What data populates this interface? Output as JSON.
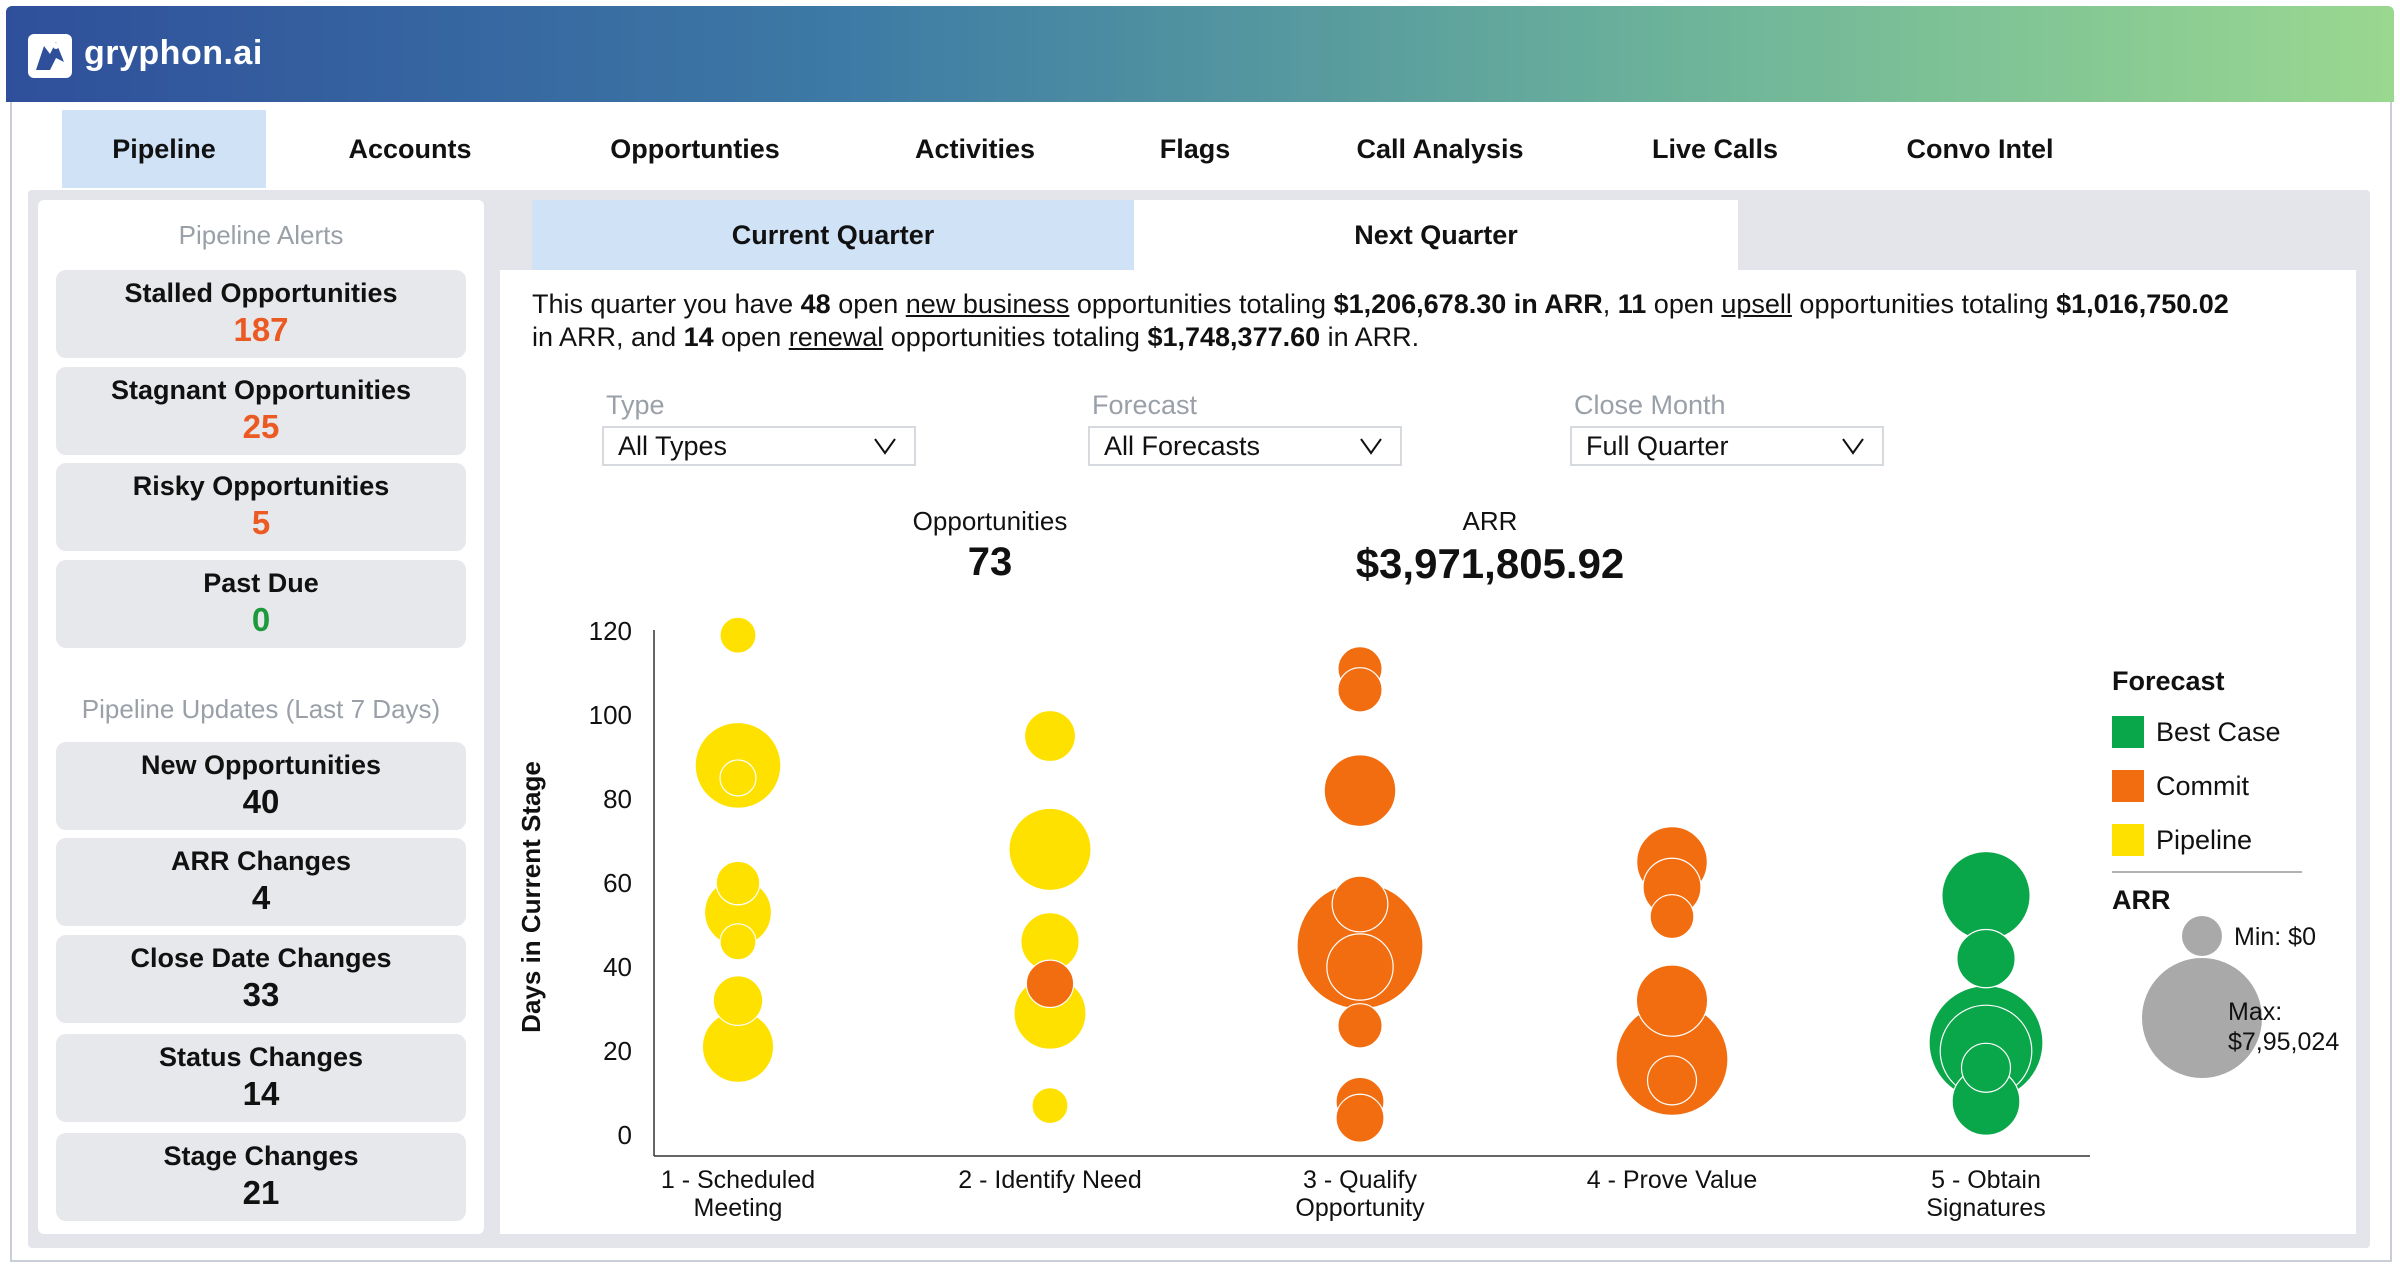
{
  "brand": {
    "name": "gryphon.ai"
  },
  "nav_tabs": [
    {
      "label": "Pipeline",
      "active": true
    },
    {
      "label": "Accounts"
    },
    {
      "label": "Opportunties"
    },
    {
      "label": "Activities"
    },
    {
      "label": "Flags"
    },
    {
      "label": "Call Analysis"
    },
    {
      "label": "Live Calls"
    },
    {
      "label": "Convo Intel"
    }
  ],
  "sidebar": {
    "alerts_title": "Pipeline Alerts",
    "alerts": [
      {
        "label": "Stalled Opportunities",
        "value": "187",
        "color": "#ec5a24"
      },
      {
        "label": "Stagnant Opportunities",
        "value": "25",
        "color": "#ec5a24"
      },
      {
        "label": "Risky Opportunities",
        "value": "5",
        "color": "#ec5a24"
      },
      {
        "label": "Past Due",
        "value": "0",
        "color": "#1e9a3d"
      }
    ],
    "updates_title": "Pipeline Updates (Last 7 Days)",
    "updates": [
      {
        "label": "New Opportunities",
        "value": "40"
      },
      {
        "label": "ARR Changes",
        "value": "4"
      },
      {
        "label": "Close Date Changes",
        "value": "33"
      },
      {
        "label": "Status Changes",
        "value": "14"
      },
      {
        "label": "Stage Changes",
        "value": "21"
      }
    ]
  },
  "quarter_tabs": [
    {
      "label": "Current Quarter",
      "active": true
    },
    {
      "label": "Next Quarter"
    }
  ],
  "summary": {
    "t1": "This quarter you have ",
    "nb_count": "48",
    "t2": " open ",
    "nb_link": "new business",
    "t3": " opportunities totaling ",
    "nb_arr": "$1,206,678.30 in ARR",
    "t4": ", ",
    "up_count": "11",
    "t5": " open ",
    "up_link": "upsell",
    "t6": " opportunities totaling ",
    "up_arr": "$1,016,750.02",
    "t7": " in ARR, and ",
    "rn_count": "14",
    "t8": " open ",
    "rn_link": "renewal",
    "t9": " opportunities totaling ",
    "rn_arr": "$1,748,377.60",
    "t10": " in ARR."
  },
  "filters": {
    "type": {
      "label": "Type",
      "value": "All Types"
    },
    "forecast": {
      "label": "Forecast",
      "value": "All Forecasts"
    },
    "close_month": {
      "label": "Close Month",
      "value": "Full Quarter"
    }
  },
  "kpis": {
    "opportunities": {
      "label": "Opportunities",
      "value": "73"
    },
    "arr": {
      "label": "ARR",
      "value": "$3,971,805.92"
    }
  },
  "chart_data": {
    "type": "scatter",
    "subtype": "bubble",
    "title": "",
    "xlabel": "",
    "ylabel": "Days in Current Stage",
    "ylim": [
      -5,
      125
    ],
    "yticks": [
      0,
      20,
      40,
      60,
      80,
      100,
      120
    ],
    "categories": [
      "1 - Scheduled Meeting",
      "2 - Identify Need",
      "3 - Qualify Opportunity",
      "4 - Prove Value",
      "5 - Obtain Signatures"
    ],
    "legend": {
      "title": "Forecast",
      "position": "right",
      "entries": [
        {
          "name": "Best Case",
          "color": "#0aa64a"
        },
        {
          "name": "Commit",
          "color": "#f26d0f"
        },
        {
          "name": "Pipeline",
          "color": "#ffe100"
        }
      ]
    },
    "size_legend": {
      "title": "ARR",
      "min_label": "Min: $0",
      "max_label_line1": "Max:",
      "max_label_line2": "$7,95,024"
    },
    "grid": false,
    "points": [
      {
        "stage": 0,
        "days": 119,
        "arr": 56000,
        "forecast": "Pipeline"
      },
      {
        "stage": 0,
        "days": 88,
        "arr": 368000,
        "forecast": "Pipeline"
      },
      {
        "stage": 0,
        "days": 85,
        "arr": 53000,
        "forecast": "Pipeline"
      },
      {
        "stage": 0,
        "days": 60,
        "arr": 95000,
        "forecast": "Pipeline"
      },
      {
        "stage": 0,
        "days": 53,
        "arr": 224000,
        "forecast": "Pipeline"
      },
      {
        "stage": 0,
        "days": 46,
        "arr": 56000,
        "forecast": "Pipeline"
      },
      {
        "stage": 0,
        "days": 32,
        "arr": 123000,
        "forecast": "Pipeline"
      },
      {
        "stage": 0,
        "days": 21,
        "arr": 254000,
        "forecast": "Pipeline"
      },
      {
        "stage": 1,
        "days": 95,
        "arr": 130000,
        "forecast": "Pipeline"
      },
      {
        "stage": 1,
        "days": 68,
        "arr": 338000,
        "forecast": "Pipeline"
      },
      {
        "stage": 1,
        "days": 46,
        "arr": 170000,
        "forecast": "Pipeline"
      },
      {
        "stage": 1,
        "days": 36,
        "arr": 112000,
        "forecast": "Commit"
      },
      {
        "stage": 1,
        "days": 29,
        "arr": 260000,
        "forecast": "Pipeline"
      },
      {
        "stage": 1,
        "days": 7,
        "arr": 60000,
        "forecast": "Pipeline"
      },
      {
        "stage": 2,
        "days": 111,
        "arr": 98000,
        "forecast": "Commit"
      },
      {
        "stage": 2,
        "days": 106,
        "arr": 98000,
        "forecast": "Commit"
      },
      {
        "stage": 2,
        "days": 82,
        "arr": 257000,
        "forecast": "Commit"
      },
      {
        "stage": 2,
        "days": 55,
        "arr": 155000,
        "forecast": "Commit"
      },
      {
        "stage": 2,
        "days": 45,
        "arr": 795000,
        "forecast": "Commit"
      },
      {
        "stage": 2,
        "days": 40,
        "arr": 220000,
        "forecast": "Commit"
      },
      {
        "stage": 2,
        "days": 26,
        "arr": 98000,
        "forecast": "Commit"
      },
      {
        "stage": 2,
        "days": 8,
        "arr": 115000,
        "forecast": "Commit"
      },
      {
        "stage": 2,
        "days": 4,
        "arr": 115000,
        "forecast": "Commit"
      },
      {
        "stage": 3,
        "days": 65,
        "arr": 250000,
        "forecast": "Commit"
      },
      {
        "stage": 3,
        "days": 59,
        "arr": 168000,
        "forecast": "Commit"
      },
      {
        "stage": 3,
        "days": 52,
        "arr": 96000,
        "forecast": "Commit"
      },
      {
        "stage": 3,
        "days": 32,
        "arr": 254000,
        "forecast": "Commit"
      },
      {
        "stage": 3,
        "days": 18,
        "arr": 627000,
        "forecast": "Commit"
      },
      {
        "stage": 3,
        "days": 13,
        "arr": 120000,
        "forecast": "Commit"
      },
      {
        "stage": 4,
        "days": 57,
        "arr": 390000,
        "forecast": "Best Case"
      },
      {
        "stage": 4,
        "days": 42,
        "arr": 170000,
        "forecast": "Best Case"
      },
      {
        "stage": 4,
        "days": 22,
        "arr": 650000,
        "forecast": "Best Case"
      },
      {
        "stage": 4,
        "days": 20,
        "arr": 420000,
        "forecast": "Best Case"
      },
      {
        "stage": 4,
        "days": 8,
        "arr": 230000,
        "forecast": "Best Case"
      },
      {
        "stage": 4,
        "days": 16,
        "arr": 120000,
        "forecast": "Best Case"
      }
    ]
  }
}
